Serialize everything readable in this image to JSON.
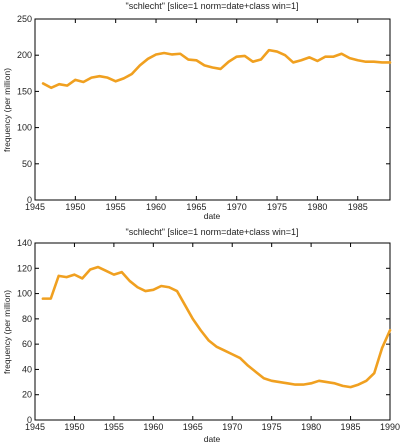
{
  "series_color": "#f0a020",
  "chart_data": [
    {
      "type": "line",
      "title": "\"schlecht\" [slice=1 norm=date+class win=1]",
      "xlabel": "date",
      "ylabel": "frequency (per million)",
      "xlim": [
        1945,
        1989
      ],
      "ylim": [
        0,
        250
      ],
      "xticks": [
        1945,
        1950,
        1955,
        1960,
        1965,
        1970,
        1975,
        1980,
        1985
      ],
      "yticks": [
        0,
        50,
        100,
        150,
        200,
        250
      ],
      "grid": false,
      "x": [
        1946,
        1947,
        1948,
        1949,
        1950,
        1951,
        1952,
        1953,
        1954,
        1955,
        1956,
        1957,
        1958,
        1959,
        1960,
        1961,
        1962,
        1963,
        1964,
        1965,
        1966,
        1967,
        1968,
        1969,
        1970,
        1971,
        1972,
        1973,
        1974,
        1975,
        1976,
        1977,
        1978,
        1979,
        1980,
        1981,
        1982,
        1983,
        1984,
        1985,
        1986,
        1987,
        1988,
        1989
      ],
      "y": [
        161,
        155,
        160,
        158,
        166,
        163,
        169,
        171,
        169,
        164,
        168,
        174,
        186,
        195,
        201,
        203,
        201,
        202,
        194,
        193,
        186,
        183,
        181,
        191,
        198,
        199,
        191,
        194,
        207,
        205,
        200,
        190,
        193,
        197,
        192,
        198,
        198,
        202,
        196,
        193,
        191,
        191,
        190,
        190
      ]
    },
    {
      "type": "line",
      "title": "\"schlecht\" [slice=1 norm=date+class win=1]",
      "xlabel": "date",
      "ylabel": "frequency (per million)",
      "xlim": [
        1945,
        1990
      ],
      "ylim": [
        0,
        140
      ],
      "xticks": [
        1945,
        1950,
        1955,
        1960,
        1965,
        1970,
        1975,
        1980,
        1985,
        1990
      ],
      "yticks": [
        0,
        20,
        40,
        60,
        80,
        100,
        120,
        140
      ],
      "grid": false,
      "x": [
        1946,
        1947,
        1948,
        1949,
        1950,
        1951,
        1952,
        1953,
        1954,
        1955,
        1956,
        1957,
        1958,
        1959,
        1960,
        1961,
        1962,
        1963,
        1964,
        1965,
        1966,
        1967,
        1968,
        1969,
        1970,
        1971,
        1972,
        1973,
        1974,
        1975,
        1976,
        1977,
        1978,
        1979,
        1980,
        1981,
        1982,
        1983,
        1984,
        1985,
        1986,
        1987,
        1988,
        1989,
        1990
      ],
      "y": [
        96,
        96,
        114,
        113,
        115,
        112,
        119,
        121,
        118,
        115,
        117,
        110,
        105,
        102,
        103,
        106,
        105,
        102,
        91,
        80,
        71,
        63,
        58,
        55,
        52,
        49,
        43,
        38,
        33,
        31,
        30,
        29,
        28,
        28,
        29,
        31,
        30,
        29,
        27,
        26,
        28,
        31,
        37,
        57,
        71
      ]
    }
  ]
}
